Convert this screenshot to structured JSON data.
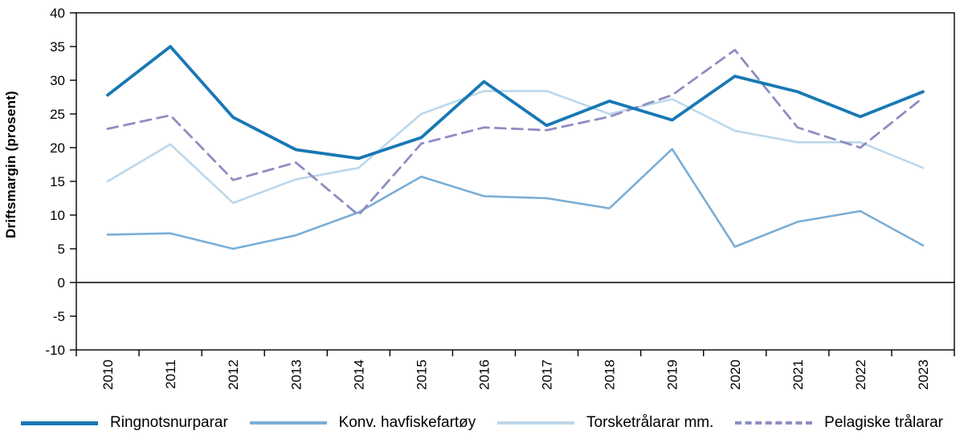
{
  "chart_data": {
    "type": "line",
    "title": "",
    "xlabel": "",
    "ylabel": "Driftsmargin (prosent)",
    "ylim": [
      -10,
      40
    ],
    "yticks": [
      40,
      35,
      30,
      25,
      20,
      15,
      10,
      5,
      0,
      -5,
      -10
    ],
    "grid": false,
    "legend_position": "bottom",
    "axis_color": "#000000",
    "categories": [
      "2010",
      "2011",
      "2012",
      "2013",
      "2014",
      "2015",
      "2016",
      "2017",
      "2018",
      "2019",
      "2020",
      "2021",
      "2022",
      "2023"
    ],
    "series": [
      {
        "name": "Ringnotsnurparar",
        "color": "#1878b4",
        "dashed": false,
        "values": [
          27.8,
          35.0,
          24.5,
          19.7,
          18.4,
          21.5,
          29.8,
          23.3,
          26.9,
          24.1,
          30.6,
          28.3,
          24.6,
          28.3
        ]
      },
      {
        "name": "Konv. havfiskefartøy",
        "color": "#7aaed6",
        "dashed": false,
        "values": [
          7.1,
          7.3,
          5.0,
          7.0,
          10.4,
          15.7,
          12.8,
          12.5,
          11.0,
          19.8,
          5.3,
          9.0,
          10.6,
          5.5
        ]
      },
      {
        "name": "Torsketrålarar mm.",
        "color": "#bdd7ea",
        "dashed": false,
        "values": [
          15.0,
          20.5,
          11.8,
          15.3,
          17.0,
          25.0,
          28.4,
          28.4,
          25.0,
          27.2,
          22.5,
          20.8,
          20.8,
          17.0
        ]
      },
      {
        "name": "Pelagiske trålarar",
        "color": "#8e8ec2",
        "dashed": true,
        "values": [
          22.8,
          24.8,
          15.2,
          17.8,
          10.0,
          20.6,
          23.0,
          22.6,
          24.6,
          27.8,
          34.5,
          23.0,
          20.0,
          27.4
        ]
      }
    ]
  }
}
